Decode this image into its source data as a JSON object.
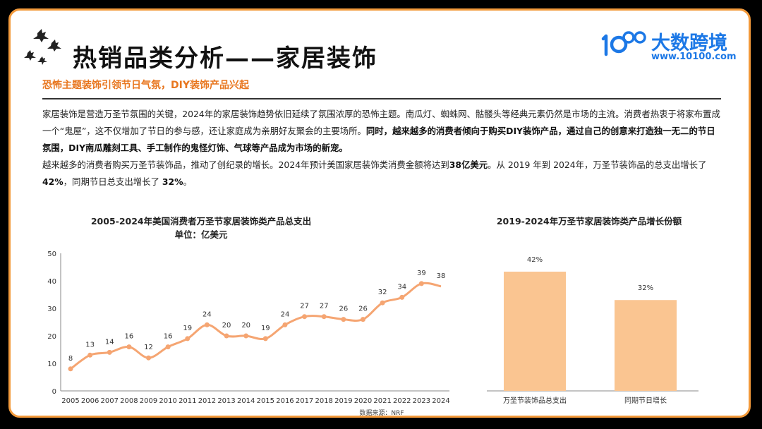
{
  "header": {
    "title": "热销品类分析——家居装饰",
    "logo_name": "大数跨境",
    "logo_url": "www.10100.com"
  },
  "subtitle": "恐怖主题装饰引领节日气氛，DIY装饰产品兴起",
  "paragraph1": {
    "s1": "家居装饰是营造万圣节氛围的关键，2024年的家居装饰趋势依旧延续了氛围浓厚的恐怖主题。南瓜灯、蜘蛛网、骷髅头等经典元素仍然是市场的主流。消费者热衷于将家布置成一个“鬼屋”，这不仅增加了节日的参与感，还让家庭成为亲朋好友聚会的主要场所。",
    "s2": "同时，越来越多的消费者倾向于购买DIY装饰产品，通过自己的创意来打造独一无二的节日氛围，DIY南瓜雕刻工具、手工制作的鬼怪灯饰、气球等产品成为市场的新宠。"
  },
  "paragraph2": {
    "p1": "越来越多的消费者购买万圣节装饰品，推动了创纪录的增长。2024年预计美国家居装饰类消费金额将达到",
    "b1": "38亿美元",
    "p2": "。从 2019 年到 2024年，万圣节装饰品的总支出增长了 ",
    "b2": "42%",
    "p3": "，同期节日总支出增长了 ",
    "b3": "32%",
    "p4": "。"
  },
  "source": "数据来源：NRF",
  "colors": {
    "accent": "#f39a3b",
    "line": "#f5a572",
    "bar": "#fac591",
    "subtitle": "#e8761e",
    "logo": "#1c78e6"
  },
  "chart_data": [
    {
      "type": "line",
      "title": "2005-2024年美国消费者万圣节家居装饰类产品总支出",
      "subtitle": "单位：亿美元",
      "x": [
        "2005",
        "2006",
        "2007",
        "2008",
        "2009",
        "2010",
        "2011",
        "2012",
        "2013",
        "2014",
        "2015",
        "2016",
        "2017",
        "2018",
        "2019",
        "2020",
        "2021",
        "2022",
        "2023",
        "2024"
      ],
      "values": [
        8,
        13,
        14,
        16,
        12,
        16,
        19,
        24,
        20,
        20,
        19,
        24,
        27,
        27,
        26,
        26,
        32,
        34,
        39,
        38
      ],
      "ylim": [
        0,
        50
      ],
      "yticks": [
        0,
        10,
        20,
        30,
        40,
        50
      ],
      "grid": false
    },
    {
      "type": "bar",
      "title": "2019-2024年万圣节家居装饰类产品增长份额",
      "categories": [
        "万圣节装饰品总支出",
        "同期节日增长"
      ],
      "values": [
        42,
        32
      ],
      "labels": [
        "42%",
        "32%"
      ],
      "unit": "%"
    }
  ]
}
